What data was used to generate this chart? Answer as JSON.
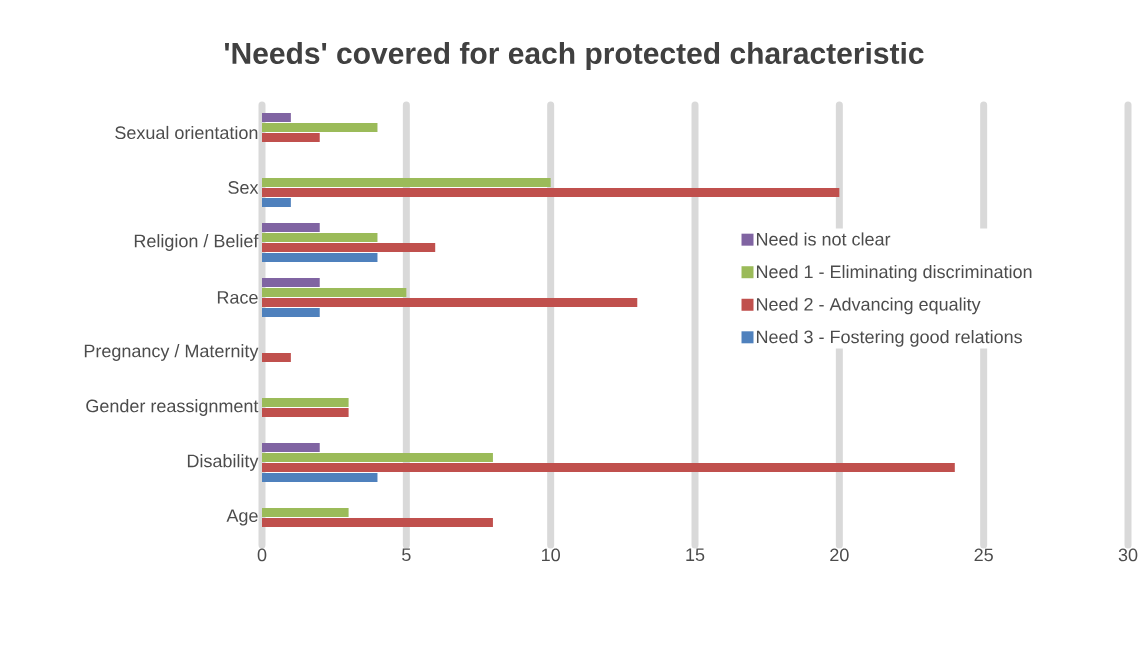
{
  "chart_data": {
    "type": "bar",
    "orientation": "horizontal",
    "title": "'Needs' covered for each protected characteristic",
    "categories": [
      "Sexual orientation",
      "Sex",
      "Religion / Belief",
      "Race",
      "Pregnancy / Maternity",
      "Gender reassignment",
      "Disability",
      "Age"
    ],
    "series": [
      {
        "name": "Need is not clear",
        "color": "#8064a2",
        "values": [
          1,
          null,
          2,
          2,
          null,
          null,
          2,
          null
        ]
      },
      {
        "name": "Need 1 - Eliminating discrimination",
        "color": "#9bbb59",
        "values": [
          4,
          10,
          4,
          5,
          null,
          3,
          8,
          3
        ]
      },
      {
        "name": "Need 2 - Advancing equality",
        "color": "#c0504d",
        "values": [
          2,
          20,
          6,
          13,
          1,
          3,
          24,
          8
        ]
      },
      {
        "name": "Need 3 - Fostering good relations",
        "color": "#4f81bd",
        "values": [
          null,
          1,
          4,
          2,
          null,
          null,
          4,
          null
        ]
      }
    ],
    "xlim": [
      0,
      30
    ],
    "xticks": [
      0,
      5,
      10,
      15,
      20,
      25,
      30
    ],
    "grid": "x",
    "legend": "right"
  }
}
